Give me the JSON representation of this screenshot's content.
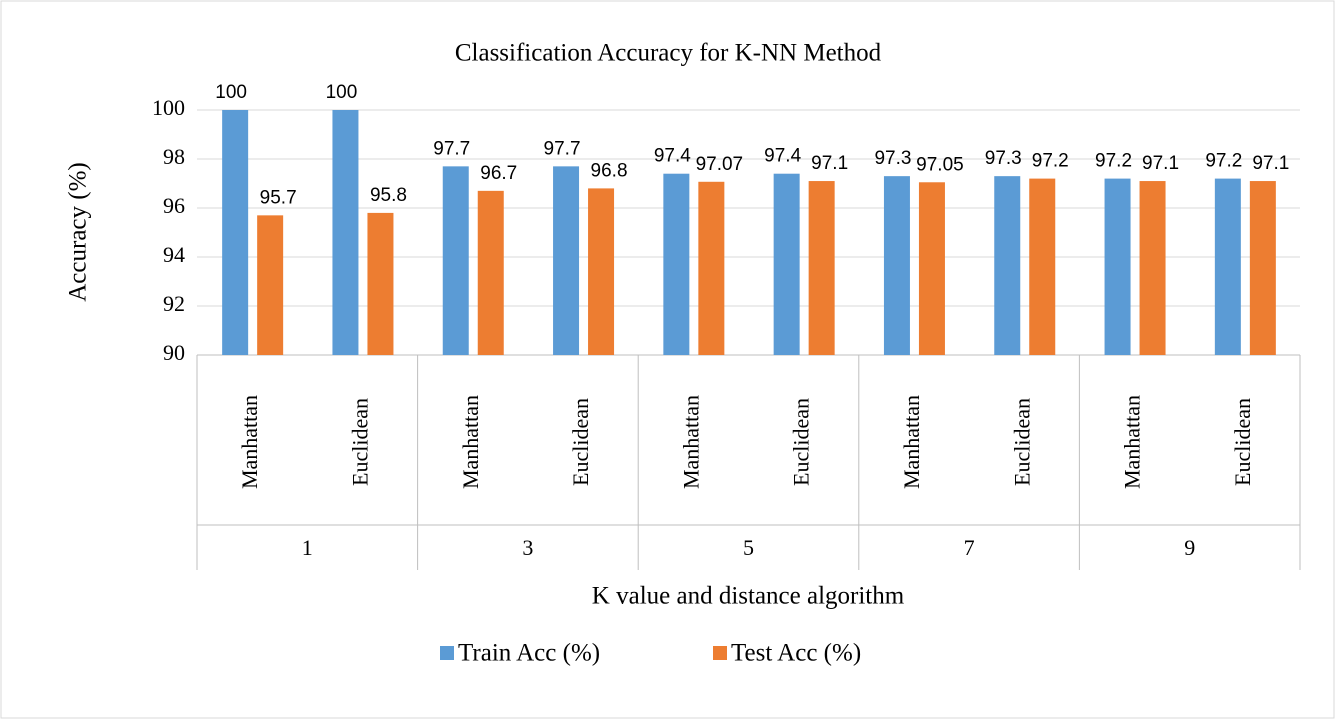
{
  "chart_data": {
    "type": "bar",
    "title": "Classification  Accuracy for K-NN  Method",
    "x_label": "K value and distance algorithm",
    "y_label": "Accuracy (%)",
    "categories": [
      "Manhattan",
      "Euclidean",
      "Manhattan",
      "Euclidean",
      "Manhattan",
      "Euclidean",
      "Manhattan",
      "Euclidean",
      "Manhattan",
      "Euclidean"
    ],
    "groups": [
      "1",
      "3",
      "5",
      "7",
      "9"
    ],
    "series": [
      {
        "name": "Train Acc (%)",
        "color": "#5b9bd5",
        "values": [
          100,
          100,
          97.7,
          97.7,
          97.4,
          97.4,
          97.3,
          97.3,
          97.2,
          97.2
        ]
      },
      {
        "name": "Test Acc (%)",
        "color": "#ed7d31",
        "values": [
          95.7,
          95.8,
          96.7,
          96.8,
          97.07,
          97.1,
          97.05,
          97.2,
          97.1,
          97.1
        ]
      }
    ],
    "ylim": [
      90,
      100
    ],
    "yticks": [
      90,
      92,
      94,
      96,
      98,
      100
    ],
    "grid": true,
    "legend": "bottom"
  }
}
